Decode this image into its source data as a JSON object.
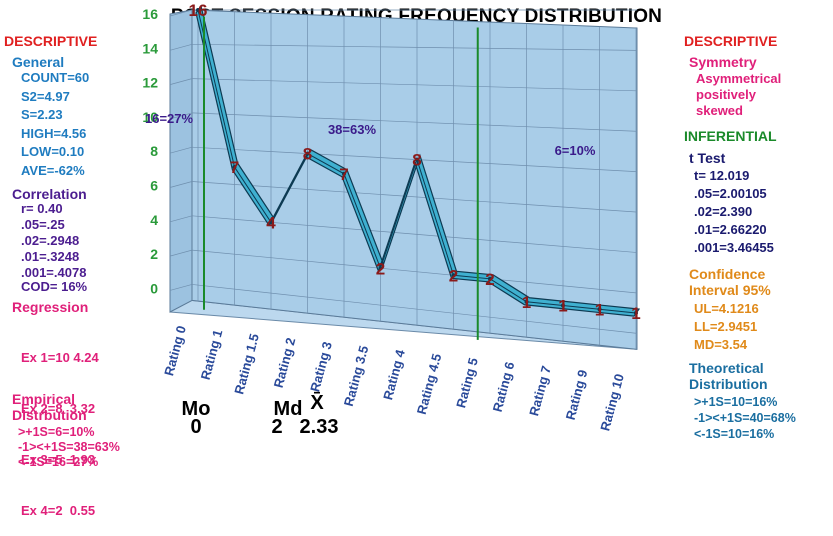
{
  "title": "POST SESSION RATING FREQUENCY DISTRIBUTION",
  "left": {
    "descriptive_header": "DESCRIPTIVE",
    "general_header": "General",
    "general_items": [
      "COUNT=60",
      "S2=4.97",
      "S=2.23",
      "HIGH=4.56",
      "LOW=0.10",
      "AVE=-62%"
    ],
    "correlation_header": "Correlation",
    "correlation_items": [
      "r= 0.40",
      ".05=.25",
      ".02=.2948",
      ".01=.3248",
      ".001=.4078"
    ],
    "cod": "COD= 16%",
    "regression_header": "Regression",
    "regression_items": [
      "Ex 1=10 4.24",
      "Ex 2=8  3.32",
      "Ex 3=5  1.93",
      "Ex 4=2  0.55"
    ],
    "empirical_header_1": "Empirical",
    "empirical_header_2": "Distrbution",
    "empirical_items": [
      ">+1S=6=10%",
      "-1><+1S=38=63%",
      "<-1S=16=27%"
    ]
  },
  "right": {
    "descriptive_header": "DESCRIPTIVE",
    "symmetry_header": "Symmetry",
    "symmetry_items": [
      "Asymmetrical",
      "positively",
      "skewed"
    ],
    "inferential_header": "INFERENTIAL",
    "ttest_header": "t Test",
    "ttest_items": [
      "t= 12.019",
      ".05=2.00105",
      ".02=2.390",
      ".01=2.66220",
      ".001=3.46455"
    ],
    "confidence_header_1": "Confidence",
    "confidence_header_2": "Interval 95%",
    "confidence_items": [
      "UL=4.1216",
      "LL=2.9451",
      "MD=3.54"
    ],
    "theoretical_header_1": "Theoretical",
    "theoretical_header_2": "Distribution",
    "theoretical_items": [
      ">+1S=10=16%",
      "-1><+1S=40=68%",
      "<-1S=10=16%"
    ]
  },
  "bottom_stats": {
    "mode_label": "Mo",
    "mode_value": "0",
    "median_label": "Md",
    "median_value": "2",
    "mean_label": "X̄",
    "mean_value": "2.33"
  },
  "chart_data": {
    "type": "line",
    "categories": [
      "Rating 0",
      "Rating 1",
      "Rating 1.5",
      "Rating 2",
      "Rating 3",
      "Rating 3.5",
      "Rating 4",
      "Rating 4.5",
      "Rating 5",
      "Rating 6",
      "Rating 7",
      "Rating 9",
      "Rating 10"
    ],
    "values": [
      16,
      7,
      4,
      8,
      7,
      2,
      8,
      2,
      2,
      1,
      1,
      1,
      1
    ],
    "data_labels": [
      "16",
      "7",
      "4",
      "8",
      "7",
      "2",
      "8",
      "2",
      "2",
      "1",
      "1",
      "1",
      "1"
    ],
    "y_ticks": [
      "0",
      "2",
      "4",
      "6",
      "8",
      "10",
      "12",
      "14",
      "16"
    ],
    "ylim": [
      0,
      16
    ],
    "grid": true,
    "line_color": "#3fb0d0",
    "wall_color": "#a9cde8",
    "divider_color": "#1a8a2a",
    "label_color": "#8b1a1a",
    "tick_color": "#2a9a3a",
    "category_color": "#2a4a9a",
    "region_labels": [
      "16=27%",
      "38=63%",
      "6=10%"
    ]
  }
}
